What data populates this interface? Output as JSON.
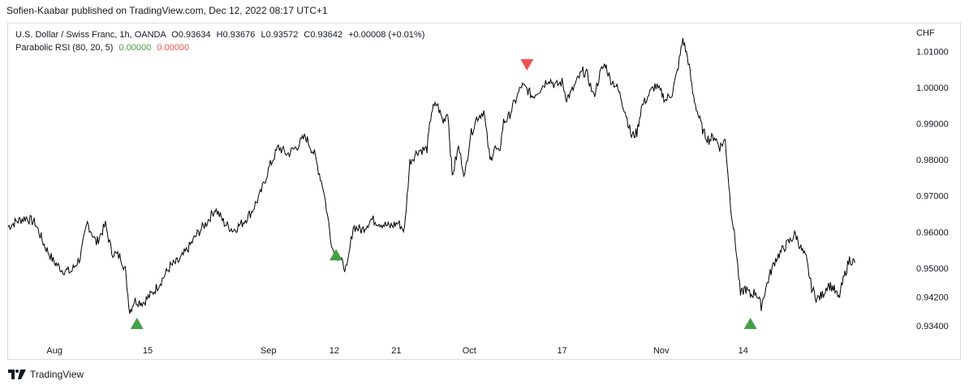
{
  "header": {
    "published": "Sofien-Kaabar published on TradingView.com, Dec 12, 2022 08:17 UTC+1"
  },
  "legend": {
    "symbol": "U.S. Dollar / Swiss Franc, 1h, OANDA",
    "o": "O0.93634",
    "h": "H0.93676",
    "l": "L0.93572",
    "c": "C0.93642",
    "change": "+0.00008 (+0.01%)",
    "indicator": "Parabolic RSI (80, 20, 5)",
    "ind_v1": "0.00000",
    "ind_v2": "0.00000"
  },
  "axis": {
    "currency": "CHF"
  },
  "footer": {
    "brand": "TradingView"
  },
  "colors": {
    "line": "#000000",
    "buy": "#43a047",
    "sell": "#ef5350",
    "grid_border": "#d9dbe0"
  },
  "chart_data": {
    "type": "line",
    "ylim": [
      0.93,
      1.0175
    ],
    "xlim": [
      0,
      100
    ],
    "y_ticks": [
      "1.01000",
      "1.00000",
      "0.99000",
      "0.98000",
      "0.97000",
      "0.96000",
      "0.95000",
      "0.94200",
      "0.93400"
    ],
    "y_tick_values": [
      1.01,
      1.0,
      0.99,
      0.98,
      0.97,
      0.96,
      0.95,
      0.942,
      0.934
    ],
    "x_ticks": [
      {
        "label": "Aug",
        "t": 5.15
      },
      {
        "label": "15",
        "t": 15.5
      },
      {
        "label": "Sep",
        "t": 28.9
      },
      {
        "label": "12",
        "t": 36.2
      },
      {
        "label": "21",
        "t": 43.1
      },
      {
        "label": "Oct",
        "t": 51.2
      },
      {
        "label": "17",
        "t": 61.5
      },
      {
        "label": "Nov",
        "t": 72.5
      },
      {
        "label": "14",
        "t": 81.6
      }
    ],
    "series": [
      {
        "points": [
          [
            0,
            0.9615
          ],
          [
            1,
            0.963
          ],
          [
            2,
            0.964
          ],
          [
            3,
            0.9625
          ],
          [
            4,
            0.9565
          ],
          [
            5,
            0.952
          ],
          [
            6,
            0.9495
          ],
          [
            7,
            0.949
          ],
          [
            8,
            0.953
          ],
          [
            8.8,
            0.9625
          ],
          [
            9.8,
            0.957
          ],
          [
            10.8,
            0.962
          ],
          [
            11.5,
            0.9545
          ],
          [
            12.5,
            0.953
          ],
          [
            13,
            0.9495
          ],
          [
            13.5,
            0.938
          ],
          [
            14,
            0.941
          ],
          [
            15,
            0.9405
          ],
          [
            16,
            0.943
          ],
          [
            17,
            0.9465
          ],
          [
            18,
            0.9505
          ],
          [
            19,
            0.952
          ],
          [
            20,
            0.9555
          ],
          [
            21,
            0.9595
          ],
          [
            22,
            0.9625
          ],
          [
            23,
            0.9665
          ],
          [
            24,
            0.9625
          ],
          [
            25,
            0.9605
          ],
          [
            26,
            0.9625
          ],
          [
            27,
            0.9655
          ],
          [
            28,
            0.9705
          ],
          [
            29,
            0.978
          ],
          [
            30,
            0.9835
          ],
          [
            31,
            0.9815
          ],
          [
            32,
            0.9835
          ],
          [
            33,
            0.9865
          ],
          [
            34,
            0.9815
          ],
          [
            35,
            0.972
          ],
          [
            36,
            0.9555
          ],
          [
            36.9,
            0.952
          ],
          [
            37.6,
            0.9495
          ],
          [
            38.3,
            0.9615
          ],
          [
            39.3,
            0.9605
          ],
          [
            40.3,
            0.9635
          ],
          [
            41.3,
            0.9625
          ],
          [
            42.3,
            0.9615
          ],
          [
            43.3,
            0.9625
          ],
          [
            44,
            0.9605
          ],
          [
            44.6,
            0.9795
          ],
          [
            45.5,
            0.9825
          ],
          [
            46.5,
            0.983
          ],
          [
            47,
            0.9935
          ],
          [
            47.6,
            0.9955
          ],
          [
            48.3,
            0.9905
          ],
          [
            48.8,
            0.9935
          ],
          [
            49.3,
            0.9755
          ],
          [
            50,
            0.9835
          ],
          [
            50.7,
            0.9755
          ],
          [
            51.3,
            0.9865
          ],
          [
            52,
            0.9915
          ],
          [
            52.8,
            0.9935
          ],
          [
            53.5,
            0.9795
          ],
          [
            54,
            0.9835
          ],
          [
            54.5,
            0.9815
          ],
          [
            55,
            0.9905
          ],
          [
            55.5,
            0.9915
          ],
          [
            56,
            0.9945
          ],
          [
            57,
            1.0005
          ],
          [
            57.6,
            0.9995
          ],
          [
            58.2,
            0.9975
          ],
          [
            59,
            0.9995
          ],
          [
            60,
            1.0025
          ],
          [
            60.8,
            1.0005
          ],
          [
            61.5,
            1.0015
          ],
          [
            62,
            0.997
          ],
          [
            62.5,
            0.9985
          ],
          [
            63.3,
            1.0025
          ],
          [
            63.8,
            1.0045
          ],
          [
            64.3,
            1.0035
          ],
          [
            65,
            0.9975
          ],
          [
            65.8,
            1.0045
          ],
          [
            66.3,
            1.0065
          ],
          [
            66.8,
            1.0025
          ],
          [
            67.5,
            1.0005
          ],
          [
            68,
            0.9975
          ],
          [
            68.6,
            0.9925
          ],
          [
            69.2,
            0.9865
          ],
          [
            69.8,
            0.9875
          ],
          [
            70.3,
            0.9945
          ],
          [
            71,
            0.9975
          ],
          [
            71.8,
            1.0005
          ],
          [
            72.5,
            0.9985
          ],
          [
            73,
            0.9965
          ],
          [
            73.7,
            0.9985
          ],
          [
            74.3,
            1.0045
          ],
          [
            74.9,
            1.0135
          ],
          [
            75.5,
            1.0075
          ],
          [
            76,
            0.9985
          ],
          [
            76.6,
            0.9925
          ],
          [
            77.2,
            0.9875
          ],
          [
            77.8,
            0.9855
          ],
          [
            78.4,
            0.9865
          ],
          [
            79,
            0.9835
          ],
          [
            79.6,
            0.9855
          ],
          [
            80.2,
            0.9675
          ],
          [
            80.8,
            0.9555
          ],
          [
            81.3,
            0.9425
          ],
          [
            81.8,
            0.9445
          ],
          [
            82.4,
            0.9425
          ],
          [
            83,
            0.9435
          ],
          [
            83.6,
            0.9395
          ],
          [
            84,
            0.9435
          ],
          [
            84.6,
            0.9485
          ],
          [
            85.2,
            0.9525
          ],
          [
            85.8,
            0.9545
          ],
          [
            86.4,
            0.9565
          ],
          [
            86.8,
            0.9575
          ],
          [
            87.4,
            0.9595
          ],
          [
            88,
            0.9555
          ],
          [
            88.6,
            0.9525
          ],
          [
            89.2,
            0.9445
          ],
          [
            89.8,
            0.9415
          ],
          [
            90.4,
            0.9425
          ],
          [
            91,
            0.9455
          ],
          [
            91.6,
            0.9445
          ],
          [
            92.2,
            0.9415
          ],
          [
            92.8,
            0.9475
          ],
          [
            93.4,
            0.9525
          ],
          [
            94,
            0.9515
          ]
        ]
      }
    ],
    "signals": [
      {
        "type": "buy",
        "t": 14.3,
        "y": 0.9345
      },
      {
        "type": "buy",
        "t": 36.4,
        "y": 0.9535
      },
      {
        "type": "sell",
        "t": 57.6,
        "y": 1.0065
      },
      {
        "type": "buy",
        "t": 82.4,
        "y": 0.9345
      }
    ]
  }
}
